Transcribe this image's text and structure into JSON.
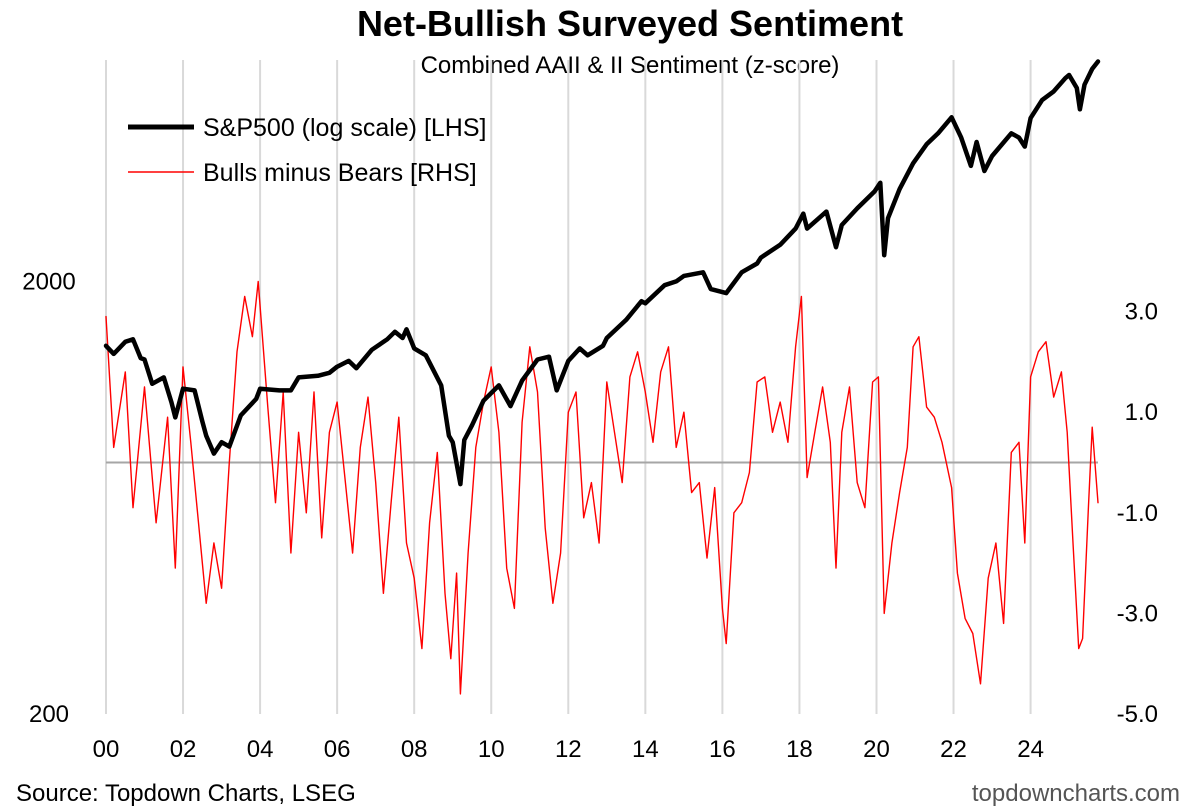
{
  "chart_data": {
    "type": "line",
    "title": "Net-Bullish Surveyed Sentiment",
    "subtitle": "Combined AAII & II Sentiment (z-score)",
    "source": "Source: Topdown Charts, LSEG",
    "watermark": "topdowncharts.com",
    "x_ticks": [
      "00",
      "02",
      "04",
      "06",
      "08",
      "10",
      "12",
      "14",
      "16",
      "18",
      "20",
      "22",
      "24"
    ],
    "x_range": [
      2000.0,
      2025.75
    ],
    "left_axis": {
      "scale": "log",
      "range": [
        200,
        6500
      ],
      "ticks": [
        2000,
        200
      ],
      "tick_labels": [
        "2000",
        "200"
      ]
    },
    "right_axis": {
      "range": [
        -5,
        8
      ],
      "ticks": [
        3,
        1,
        -1,
        -3,
        -5
      ],
      "tick_labels": [
        "3.0",
        "1.0",
        "-1.0",
        "-3.0",
        "-5.0"
      ]
    },
    "zero_line": 0,
    "series": [
      {
        "name": "S&P500 (log scale) [LHS]",
        "axis": "left",
        "color": "#000000",
        "points": [
          [
            2000.0,
            1420
          ],
          [
            2000.2,
            1360
          ],
          [
            2000.5,
            1450
          ],
          [
            2000.7,
            1470
          ],
          [
            2000.9,
            1330
          ],
          [
            2001.0,
            1320
          ],
          [
            2001.2,
            1160
          ],
          [
            2001.5,
            1200
          ],
          [
            2001.7,
            1050
          ],
          [
            2001.8,
            970
          ],
          [
            2002.0,
            1130
          ],
          [
            2002.3,
            1120
          ],
          [
            2002.5,
            950
          ],
          [
            2002.6,
            880
          ],
          [
            2002.8,
            800
          ],
          [
            2003.0,
            850
          ],
          [
            2003.2,
            830
          ],
          [
            2003.5,
            980
          ],
          [
            2003.9,
            1070
          ],
          [
            2004.0,
            1130
          ],
          [
            2004.5,
            1120
          ],
          [
            2004.8,
            1120
          ],
          [
            2005.0,
            1200
          ],
          [
            2005.5,
            1210
          ],
          [
            2005.8,
            1230
          ],
          [
            2006.0,
            1270
          ],
          [
            2006.3,
            1310
          ],
          [
            2006.5,
            1260
          ],
          [
            2006.9,
            1390
          ],
          [
            2007.3,
            1470
          ],
          [
            2007.5,
            1530
          ],
          [
            2007.7,
            1480
          ],
          [
            2007.8,
            1550
          ],
          [
            2008.0,
            1400
          ],
          [
            2008.3,
            1350
          ],
          [
            2008.7,
            1150
          ],
          [
            2008.9,
            880
          ],
          [
            2009.0,
            850
          ],
          [
            2009.2,
            680
          ],
          [
            2009.3,
            860
          ],
          [
            2009.5,
            930
          ],
          [
            2009.8,
            1060
          ],
          [
            2010.2,
            1150
          ],
          [
            2010.5,
            1030
          ],
          [
            2010.8,
            1180
          ],
          [
            2011.2,
            1320
          ],
          [
            2011.5,
            1340
          ],
          [
            2011.7,
            1120
          ],
          [
            2012.0,
            1310
          ],
          [
            2012.3,
            1400
          ],
          [
            2012.5,
            1350
          ],
          [
            2012.9,
            1420
          ],
          [
            2013.0,
            1480
          ],
          [
            2013.5,
            1630
          ],
          [
            2013.9,
            1800
          ],
          [
            2014.0,
            1780
          ],
          [
            2014.5,
            1960
          ],
          [
            2014.8,
            2000
          ],
          [
            2015.0,
            2060
          ],
          [
            2015.5,
            2100
          ],
          [
            2015.7,
            1920
          ],
          [
            2016.1,
            1880
          ],
          [
            2016.5,
            2100
          ],
          [
            2016.9,
            2200
          ],
          [
            2017.0,
            2270
          ],
          [
            2017.5,
            2430
          ],
          [
            2017.9,
            2650
          ],
          [
            2018.1,
            2870
          ],
          [
            2018.2,
            2650
          ],
          [
            2018.7,
            2900
          ],
          [
            2018.95,
            2400
          ],
          [
            2019.1,
            2700
          ],
          [
            2019.5,
            2950
          ],
          [
            2019.95,
            3230
          ],
          [
            2020.1,
            3380
          ],
          [
            2020.2,
            2300
          ],
          [
            2020.3,
            2800
          ],
          [
            2020.6,
            3270
          ],
          [
            2020.95,
            3750
          ],
          [
            2021.3,
            4150
          ],
          [
            2021.6,
            4400
          ],
          [
            2021.95,
            4790
          ],
          [
            2022.2,
            4300
          ],
          [
            2022.45,
            3700
          ],
          [
            2022.6,
            4200
          ],
          [
            2022.8,
            3600
          ],
          [
            2023.0,
            3900
          ],
          [
            2023.5,
            4400
          ],
          [
            2023.7,
            4300
          ],
          [
            2023.85,
            4100
          ],
          [
            2024.0,
            4770
          ],
          [
            2024.3,
            5250
          ],
          [
            2024.6,
            5500
          ],
          [
            2024.9,
            5900
          ],
          [
            2025.0,
            6000
          ],
          [
            2025.2,
            5600
          ],
          [
            2025.28,
            5000
          ],
          [
            2025.4,
            5700
          ],
          [
            2025.6,
            6200
          ],
          [
            2025.75,
            6450
          ]
        ]
      },
      {
        "name": "Bulls minus Bears [RHS]",
        "axis": "right",
        "color": "#ff0000",
        "points": [
          [
            2000.0,
            2.9
          ],
          [
            2000.2,
            0.3
          ],
          [
            2000.5,
            1.8
          ],
          [
            2000.7,
            -0.9
          ],
          [
            2001.0,
            1.5
          ],
          [
            2001.3,
            -1.2
          ],
          [
            2001.6,
            0.9
          ],
          [
            2001.8,
            -2.1
          ],
          [
            2002.0,
            1.9
          ],
          [
            2002.2,
            0.4
          ],
          [
            2002.4,
            -1.2
          ],
          [
            2002.6,
            -2.8
          ],
          [
            2002.8,
            -1.6
          ],
          [
            2003.0,
            -2.5
          ],
          [
            2003.2,
            0.0
          ],
          [
            2003.4,
            2.2
          ],
          [
            2003.6,
            3.3
          ],
          [
            2003.8,
            2.5
          ],
          [
            2003.95,
            3.6
          ],
          [
            2004.2,
            1.1
          ],
          [
            2004.4,
            -0.8
          ],
          [
            2004.6,
            1.4
          ],
          [
            2004.8,
            -1.8
          ],
          [
            2005.0,
            0.6
          ],
          [
            2005.2,
            -1.0
          ],
          [
            2005.4,
            1.4
          ],
          [
            2005.6,
            -1.5
          ],
          [
            2005.8,
            0.6
          ],
          [
            2006.0,
            1.2
          ],
          [
            2006.2,
            -0.3
          ],
          [
            2006.4,
            -1.8
          ],
          [
            2006.6,
            0.3
          ],
          [
            2006.8,
            1.3
          ],
          [
            2007.0,
            -0.4
          ],
          [
            2007.2,
            -2.6
          ],
          [
            2007.4,
            -0.8
          ],
          [
            2007.6,
            0.9
          ],
          [
            2007.8,
            -1.6
          ],
          [
            2008.0,
            -2.3
          ],
          [
            2008.2,
            -3.7
          ],
          [
            2008.4,
            -1.2
          ],
          [
            2008.6,
            0.2
          ],
          [
            2008.8,
            -2.6
          ],
          [
            2008.95,
            -3.9
          ],
          [
            2009.1,
            -2.2
          ],
          [
            2009.2,
            -4.6
          ],
          [
            2009.4,
            -1.8
          ],
          [
            2009.6,
            0.3
          ],
          [
            2009.8,
            1.2
          ],
          [
            2010.0,
            1.9
          ],
          [
            2010.2,
            0.6
          ],
          [
            2010.4,
            -2.1
          ],
          [
            2010.6,
            -2.9
          ],
          [
            2010.8,
            0.8
          ],
          [
            2011.0,
            2.3
          ],
          [
            2011.2,
            1.4
          ],
          [
            2011.4,
            -1.3
          ],
          [
            2011.6,
            -2.8
          ],
          [
            2011.8,
            -1.8
          ],
          [
            2012.0,
            1.0
          ],
          [
            2012.2,
            1.4
          ],
          [
            2012.4,
            -1.1
          ],
          [
            2012.6,
            -0.4
          ],
          [
            2012.8,
            -1.6
          ],
          [
            2013.0,
            1.6
          ],
          [
            2013.2,
            0.6
          ],
          [
            2013.4,
            -0.4
          ],
          [
            2013.6,
            1.7
          ],
          [
            2013.8,
            2.2
          ],
          [
            2014.0,
            1.4
          ],
          [
            2014.2,
            0.4
          ],
          [
            2014.4,
            1.8
          ],
          [
            2014.6,
            2.3
          ],
          [
            2014.8,
            0.3
          ],
          [
            2015.0,
            1.0
          ],
          [
            2015.2,
            -0.6
          ],
          [
            2015.4,
            -0.4
          ],
          [
            2015.6,
            -1.9
          ],
          [
            2015.8,
            -0.5
          ],
          [
            2016.0,
            -2.9
          ],
          [
            2016.1,
            -3.6
          ],
          [
            2016.3,
            -1.0
          ],
          [
            2016.5,
            -0.8
          ],
          [
            2016.7,
            -0.2
          ],
          [
            2016.9,
            1.6
          ],
          [
            2017.1,
            1.7
          ],
          [
            2017.3,
            0.6
          ],
          [
            2017.5,
            1.2
          ],
          [
            2017.7,
            0.4
          ],
          [
            2017.9,
            2.3
          ],
          [
            2018.05,
            3.3
          ],
          [
            2018.2,
            -0.3
          ],
          [
            2018.4,
            0.6
          ],
          [
            2018.6,
            1.5
          ],
          [
            2018.8,
            0.4
          ],
          [
            2018.95,
            -2.1
          ],
          [
            2019.1,
            0.6
          ],
          [
            2019.3,
            1.5
          ],
          [
            2019.5,
            -0.4
          ],
          [
            2019.7,
            -0.9
          ],
          [
            2019.9,
            1.6
          ],
          [
            2020.05,
            1.7
          ],
          [
            2020.2,
            -3.0
          ],
          [
            2020.4,
            -1.6
          ],
          [
            2020.6,
            -0.6
          ],
          [
            2020.8,
            0.3
          ],
          [
            2020.95,
            2.3
          ],
          [
            2021.1,
            2.5
          ],
          [
            2021.3,
            1.1
          ],
          [
            2021.5,
            0.9
          ],
          [
            2021.7,
            0.4
          ],
          [
            2021.95,
            -0.5
          ],
          [
            2022.1,
            -2.2
          ],
          [
            2022.3,
            -3.1
          ],
          [
            2022.5,
            -3.4
          ],
          [
            2022.7,
            -4.4
          ],
          [
            2022.9,
            -2.3
          ],
          [
            2023.1,
            -1.6
          ],
          [
            2023.3,
            -3.2
          ],
          [
            2023.5,
            0.2
          ],
          [
            2023.7,
            0.4
          ],
          [
            2023.85,
            -1.6
          ],
          [
            2024.0,
            1.7
          ],
          [
            2024.2,
            2.2
          ],
          [
            2024.4,
            2.4
          ],
          [
            2024.6,
            1.3
          ],
          [
            2024.8,
            1.8
          ],
          [
            2024.95,
            0.6
          ],
          [
            2025.1,
            -1.6
          ],
          [
            2025.25,
            -3.7
          ],
          [
            2025.35,
            -3.5
          ],
          [
            2025.5,
            -0.9
          ],
          [
            2025.6,
            0.7
          ],
          [
            2025.75,
            -0.8
          ]
        ]
      }
    ]
  }
}
